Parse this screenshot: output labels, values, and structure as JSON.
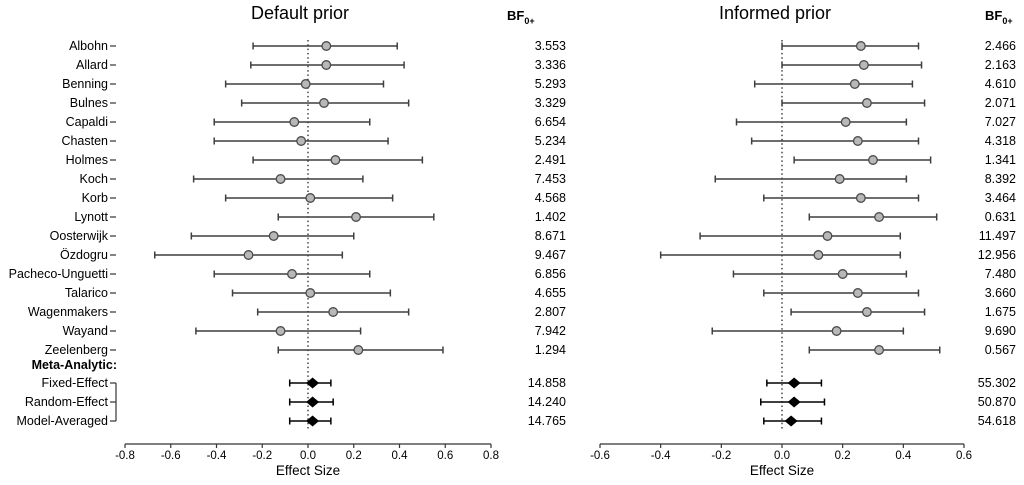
{
  "chart_data": {
    "type": "forest",
    "description": "Two-panel forest plot of effect sizes with 95% intervals and Bayes factors (BF0+) per study, plus meta-analytic estimates.",
    "meta_section_label": "Meta-Analytic:",
    "colors": {
      "study_line": "#3f3f3f",
      "point_fill": "#b8b8b8",
      "point_stroke": "#4a4a4a",
      "meta_color": "#000000",
      "axis_color": "#333333",
      "text_color": "#111111",
      "zero_line": "#000000"
    },
    "panels": [
      {
        "title": "Default prior",
        "bf_header_main": "BF",
        "bf_header_sub": "0+",
        "xlabel": "Effect Size",
        "xlim": [
          -0.8,
          0.8
        ],
        "xticks": [
          -0.8,
          -0.6,
          -0.4,
          -0.2,
          0.0,
          0.2,
          0.4,
          0.6,
          0.8
        ],
        "show_row_labels": true,
        "studies": [
          {
            "label": "Albohn",
            "lo": -0.24,
            "est": 0.08,
            "hi": 0.39,
            "bf": "3.553"
          },
          {
            "label": "Allard",
            "lo": -0.25,
            "est": 0.08,
            "hi": 0.42,
            "bf": "3.336"
          },
          {
            "label": "Benning",
            "lo": -0.36,
            "est": -0.01,
            "hi": 0.33,
            "bf": "5.293"
          },
          {
            "label": "Bulnes",
            "lo": -0.29,
            "est": 0.07,
            "hi": 0.44,
            "bf": "3.329"
          },
          {
            "label": "Capaldi",
            "lo": -0.41,
            "est": -0.06,
            "hi": 0.27,
            "bf": "6.654"
          },
          {
            "label": "Chasten",
            "lo": -0.41,
            "est": -0.03,
            "hi": 0.35,
            "bf": "5.234"
          },
          {
            "label": "Holmes",
            "lo": -0.24,
            "est": 0.12,
            "hi": 0.5,
            "bf": "2.491"
          },
          {
            "label": "Koch",
            "lo": -0.5,
            "est": -0.12,
            "hi": 0.24,
            "bf": "7.453"
          },
          {
            "label": "Korb",
            "lo": -0.36,
            "est": 0.01,
            "hi": 0.37,
            "bf": "4.568"
          },
          {
            "label": "Lynott",
            "lo": -0.13,
            "est": 0.21,
            "hi": 0.55,
            "bf": "1.402"
          },
          {
            "label": "Oosterwijk",
            "lo": -0.51,
            "est": -0.15,
            "hi": 0.2,
            "bf": "8.671"
          },
          {
            "label": "Özdogru",
            "lo": -0.67,
            "est": -0.26,
            "hi": 0.15,
            "bf": "9.467"
          },
          {
            "label": "Pacheco-Unguetti",
            "lo": -0.41,
            "est": -0.07,
            "hi": 0.27,
            "bf": "6.856"
          },
          {
            "label": "Talarico",
            "lo": -0.33,
            "est": 0.01,
            "hi": 0.36,
            "bf": "4.655"
          },
          {
            "label": "Wagenmakers",
            "lo": -0.22,
            "est": 0.11,
            "hi": 0.44,
            "bf": "2.807"
          },
          {
            "label": "Wayand",
            "lo": -0.49,
            "est": -0.12,
            "hi": 0.23,
            "bf": "7.942"
          },
          {
            "label": "Zeelenberg",
            "lo": -0.13,
            "est": 0.22,
            "hi": 0.59,
            "bf": "1.294"
          }
        ],
        "meta": [
          {
            "label": "Fixed-Effect",
            "lo": -0.08,
            "est": 0.02,
            "hi": 0.1,
            "bf": "14.858"
          },
          {
            "label": "Random-Effect",
            "lo": -0.08,
            "est": 0.02,
            "hi": 0.11,
            "bf": "14.240"
          },
          {
            "label": "Model-Averaged",
            "lo": -0.08,
            "est": 0.02,
            "hi": 0.1,
            "bf": "14.765"
          }
        ]
      },
      {
        "title": "Informed prior",
        "bf_header_main": "BF",
        "bf_header_sub": "0+",
        "xlabel": "Effect Size",
        "xlim": [
          -0.6,
          0.6
        ],
        "xticks": [
          -0.6,
          -0.4,
          -0.2,
          0.0,
          0.2,
          0.4,
          0.6
        ],
        "show_row_labels": false,
        "studies": [
          {
            "label": "Albohn",
            "lo": 0.0,
            "est": 0.26,
            "hi": 0.45,
            "bf": "2.466"
          },
          {
            "label": "Allard",
            "lo": 0.0,
            "est": 0.27,
            "hi": 0.46,
            "bf": "2.163"
          },
          {
            "label": "Benning",
            "lo": -0.09,
            "est": 0.24,
            "hi": 0.43,
            "bf": "4.610"
          },
          {
            "label": "Bulnes",
            "lo": 0.0,
            "est": 0.28,
            "hi": 0.47,
            "bf": "2.071"
          },
          {
            "label": "Capaldi",
            "lo": -0.15,
            "est": 0.21,
            "hi": 0.41,
            "bf": "7.027"
          },
          {
            "label": "Chasten",
            "lo": -0.1,
            "est": 0.25,
            "hi": 0.45,
            "bf": "4.318"
          },
          {
            "label": "Holmes",
            "lo": 0.04,
            "est": 0.3,
            "hi": 0.49,
            "bf": "1.341"
          },
          {
            "label": "Koch",
            "lo": -0.22,
            "est": 0.19,
            "hi": 0.41,
            "bf": "8.392"
          },
          {
            "label": "Korb",
            "lo": -0.06,
            "est": 0.26,
            "hi": 0.45,
            "bf": "3.464"
          },
          {
            "label": "Lynott",
            "lo": 0.09,
            "est": 0.32,
            "hi": 0.51,
            "bf": "0.631"
          },
          {
            "label": "Oosterwijk",
            "lo": -0.27,
            "est": 0.15,
            "hi": 0.39,
            "bf": "11.497"
          },
          {
            "label": "Özdogru",
            "lo": -0.4,
            "est": 0.12,
            "hi": 0.39,
            "bf": "12.956"
          },
          {
            "label": "Pacheco-Unguetti",
            "lo": -0.16,
            "est": 0.2,
            "hi": 0.41,
            "bf": "7.480"
          },
          {
            "label": "Talarico",
            "lo": -0.06,
            "est": 0.25,
            "hi": 0.45,
            "bf": "3.660"
          },
          {
            "label": "Wagenmakers",
            "lo": 0.03,
            "est": 0.28,
            "hi": 0.47,
            "bf": "1.675"
          },
          {
            "label": "Wayand",
            "lo": -0.23,
            "est": 0.18,
            "hi": 0.4,
            "bf": "9.690"
          },
          {
            "label": "Zeelenberg",
            "lo": 0.09,
            "est": 0.32,
            "hi": 0.52,
            "bf": "0.567"
          }
        ],
        "meta": [
          {
            "label": "Fixed-Effect",
            "lo": -0.05,
            "est": 0.04,
            "hi": 0.13,
            "bf": "55.302"
          },
          {
            "label": "Random-Effect",
            "lo": -0.07,
            "est": 0.04,
            "hi": 0.14,
            "bf": "50.870"
          },
          {
            "label": "Model-Averaged",
            "lo": -0.06,
            "est": 0.03,
            "hi": 0.13,
            "bf": "54.618"
          }
        ]
      }
    ]
  }
}
